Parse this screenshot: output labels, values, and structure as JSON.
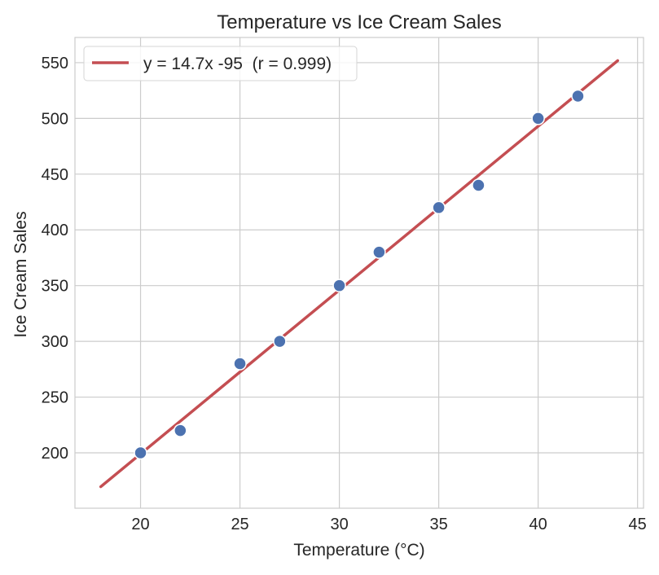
{
  "chart_data": {
    "type": "scatter",
    "title": "Temperature vs Ice Cream Sales",
    "xlabel": "Temperature (°C)",
    "ylabel": "Ice Cream Sales",
    "xlim": [
      16.7,
      45.3
    ],
    "ylim": [
      150.3,
      572.6
    ],
    "xticks": [
      20,
      25,
      30,
      35,
      40,
      45
    ],
    "yticks": [
      200,
      250,
      300,
      350,
      400,
      450,
      500,
      550
    ],
    "grid": true,
    "legend_position": "top-left",
    "points": {
      "x": [
        20,
        22,
        25,
        27,
        30,
        32,
        35,
        37,
        40,
        42
      ],
      "y": [
        200,
        220,
        280,
        300,
        350,
        380,
        420,
        440,
        500,
        520
      ],
      "color": "#4c72b0"
    },
    "fit_line": {
      "name": "y = 14.7x -95  (r = 0.999)",
      "slope": 14.7,
      "intercept": -95,
      "x_range": [
        18,
        44
      ],
      "color": "#c44e52"
    }
  }
}
